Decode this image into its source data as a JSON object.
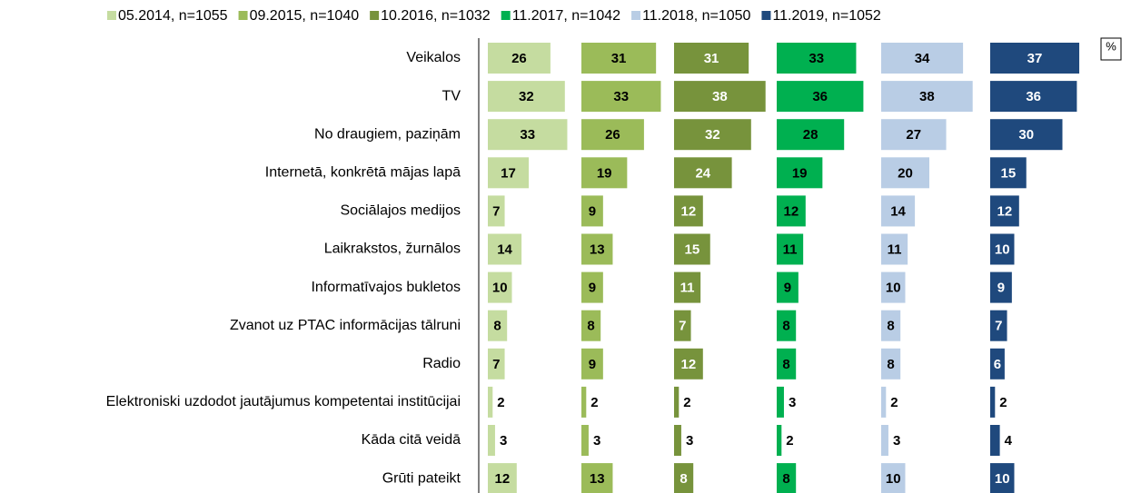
{
  "chart_data": {
    "type": "bar",
    "unit": "%",
    "categories": [
      "Veikalos",
      "TV",
      "No draugiem, paziņām",
      "Internetā, konkrētā mājas lapā",
      "Sociālajos medijos",
      "Laikrakstos, žurnālos",
      "Informatīvajos bukletos",
      "Zvanot uz PTAC informācijas tālruni",
      "Radio",
      "Elektroniski uzdodot jautājumus kompetentai institūcijai",
      "Kāda citā veidā",
      "Grūti pateikt"
    ],
    "series": [
      {
        "name": "05.2014, n=1055",
        "color": "#c5dca0",
        "text_color": "#000000",
        "values": [
          26,
          32,
          33,
          17,
          7,
          14,
          10,
          8,
          7,
          2,
          3,
          12
        ]
      },
      {
        "name": "09.2015, n=1040",
        "color": "#9bbb59",
        "text_color": "#000000",
        "values": [
          31,
          33,
          26,
          19,
          9,
          13,
          9,
          8,
          9,
          2,
          3,
          13
        ]
      },
      {
        "name": "10.2016, n=1032",
        "color": "#77933c",
        "text_color": "#ffffff",
        "values": [
          31,
          38,
          32,
          24,
          12,
          15,
          11,
          7,
          12,
          2,
          3,
          8
        ]
      },
      {
        "name": "11.2017, n=1042",
        "color": "#00b050",
        "text_color": "#000000",
        "values": [
          33,
          36,
          28,
          19,
          12,
          11,
          9,
          8,
          8,
          3,
          2,
          8
        ]
      },
      {
        "name": "11.2018, n=1050",
        "color": "#b9cde5",
        "text_color": "#000000",
        "values": [
          34,
          38,
          27,
          20,
          14,
          11,
          10,
          8,
          8,
          2,
          3,
          10
        ]
      },
      {
        "name": "11.2019, n=1052",
        "color": "#1f497d",
        "text_color": "#ffffff",
        "values": [
          37,
          36,
          30,
          15,
          12,
          10,
          9,
          7,
          6,
          2,
          4,
          10
        ]
      }
    ]
  }
}
